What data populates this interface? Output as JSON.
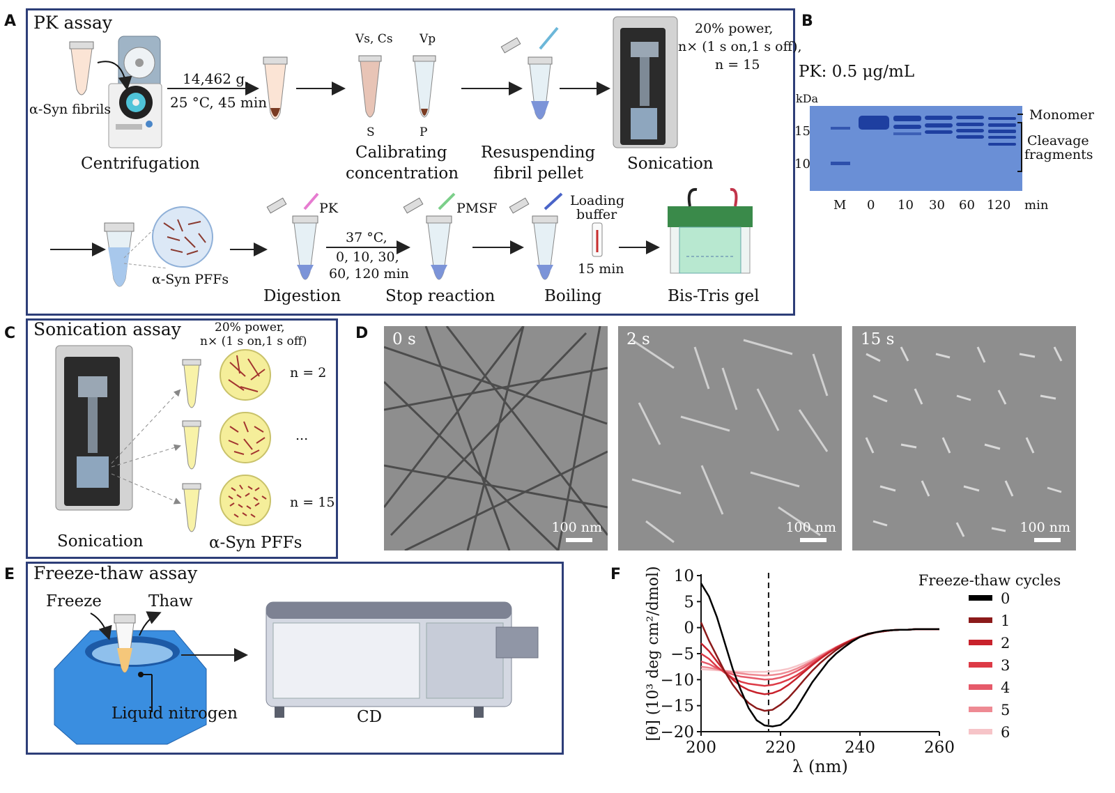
{
  "panels": {
    "A": {
      "letter": "A",
      "title": "PK assay",
      "fibrils_label": "α-Syn fibrils",
      "centrifugation": "Centrifugation",
      "spin_speed": "14,462 g,",
      "spin_cond": "25 °C, 45 min",
      "vs_cs": "Vs, Cs",
      "vp": "Vp",
      "s": "S",
      "p": "P",
      "calibrating_1": "Calibrating",
      "calibrating_2": "concentration",
      "resuspending_1": "Resuspending",
      "resuspending_2": "fibril pellet",
      "sonication": "Sonication",
      "son_cond_1": "20% power,",
      "son_cond_2": "n× (1 s on,1 s off),",
      "son_cond_3": "n = 15",
      "pffs": "α-Syn PFFs",
      "pk": "PK",
      "digestion": "Digestion",
      "dig_cond_1": "37 °C,",
      "dig_cond_2": "0, 10, 30,",
      "dig_cond_3": "60, 120 min",
      "pmsf": "PMSF",
      "stop": "Stop reaction",
      "loading_1": "Loading",
      "loading_2": "buffer",
      "boil_time": "15 min",
      "boiling": "Boiling",
      "gel": "Bis-Tris gel"
    },
    "B": {
      "letter": "B",
      "title": "PK: 0.5 μg/mL",
      "kda": "kDa",
      "marker_15": "15",
      "marker_10": "10",
      "monomer": "Monomer",
      "cleavage_1": "Cleavage",
      "cleavage_2": "fragments",
      "lanes": [
        "M",
        "0",
        "10",
        "30",
        "60",
        "120"
      ],
      "lane_unit": "min"
    },
    "C": {
      "letter": "C",
      "title": "Sonication assay",
      "cond_1": "20% power,",
      "cond_2": "n× (1 s on,1 s off)",
      "n2": "n = 2",
      "dots": "...",
      "n15": "n = 15",
      "sonication": "Sonication",
      "pffs": "α-Syn PFFs"
    },
    "D": {
      "letter": "D",
      "images": [
        {
          "label": "0 s",
          "scale": "100 nm"
        },
        {
          "label": "2 s",
          "scale": "100 nm"
        },
        {
          "label": "15 s",
          "scale": "100 nm"
        }
      ]
    },
    "E": {
      "letter": "E",
      "title": "Freeze-thaw assay",
      "freeze": "Freeze",
      "thaw": "Thaw",
      "ln2": "Liquid nitrogen",
      "cd": "CD"
    },
    "F": {
      "letter": "F"
    }
  },
  "colors": {
    "frame": "#2d3e78",
    "gel": "#6a8fd6",
    "pff_circle": "#f5ee9a",
    "fibril": "#a2342f"
  },
  "chart_data": {
    "type": "line",
    "xlabel": "λ (nm)",
    "ylabel": "[θ] (10³ deg cm²/dmol)",
    "xlim": [
      200,
      260
    ],
    "ylim": [
      -20,
      10
    ],
    "xticks": [
      "200",
      "220",
      "240",
      "260"
    ],
    "yticks": [
      "10",
      "5",
      "0",
      "−5",
      "−10",
      "−15",
      "−20"
    ],
    "vline_x": 217,
    "legend_title": "Freeze-thaw cycles",
    "legend_position": "right",
    "x": [
      200,
      202,
      204,
      206,
      208,
      210,
      212,
      214,
      216,
      218,
      220,
      222,
      224,
      226,
      228,
      230,
      232,
      234,
      236,
      238,
      240,
      242,
      244,
      246,
      248,
      250,
      252,
      254,
      256,
      258,
      260
    ],
    "series": [
      {
        "name": "0",
        "color": "#000000",
        "values": [
          8.5,
          6,
          2,
          -3,
          -8,
          -12,
          -15.5,
          -17.8,
          -18.8,
          -19,
          -18.7,
          -17.5,
          -15.5,
          -13,
          -10.5,
          -8.5,
          -6.5,
          -5,
          -3.8,
          -2.7,
          -1.8,
          -1.2,
          -0.9,
          -0.6,
          -0.5,
          -0.4,
          -0.4,
          -0.3,
          -0.3,
          -0.3,
          -0.3
        ]
      },
      {
        "name": "1",
        "color": "#8b1a1a",
        "values": [
          1,
          -2.5,
          -5.5,
          -8.5,
          -11,
          -13,
          -14.5,
          -15.5,
          -16,
          -15.8,
          -14.8,
          -13.5,
          -11.8,
          -10,
          -8.3,
          -6.8,
          -5.5,
          -4.3,
          -3.3,
          -2.5,
          -1.8,
          -1.3,
          -0.9,
          -0.7,
          -0.5,
          -0.4,
          -0.4,
          -0.3,
          -0.3,
          -0.3,
          -0.3
        ]
      },
      {
        "name": "2",
        "color": "#c8222c",
        "values": [
          -3,
          -4.5,
          -6.5,
          -8.5,
          -10,
          -11.2,
          -12,
          -12.5,
          -12.8,
          -12.6,
          -12,
          -11,
          -9.8,
          -8.5,
          -7.2,
          -6,
          -4.9,
          -3.9,
          -3.1,
          -2.4,
          -1.8,
          -1.3,
          -0.9,
          -0.7,
          -0.5,
          -0.4,
          -0.4,
          -0.3,
          -0.3,
          -0.3,
          -0.3
        ]
      },
      {
        "name": "3",
        "color": "#dd3a46",
        "values": [
          -5,
          -6,
          -7.5,
          -8.7,
          -9.7,
          -10.4,
          -10.8,
          -11,
          -11.2,
          -11,
          -10.6,
          -10,
          -9.2,
          -8.2,
          -7,
          -5.9,
          -4.8,
          -3.9,
          -3.1,
          -2.4,
          -1.8,
          -1.3,
          -0.9,
          -0.7,
          -0.5,
          -0.4,
          -0.4,
          -0.3,
          -0.3,
          -0.3,
          -0.3
        ]
      },
      {
        "name": "4",
        "color": "#e65a6a",
        "values": [
          -6.5,
          -7,
          -7.8,
          -8.5,
          -9,
          -9.4,
          -9.6,
          -9.8,
          -10,
          -9.9,
          -9.6,
          -9.1,
          -8.4,
          -7.6,
          -6.6,
          -5.6,
          -4.7,
          -3.8,
          -3,
          -2.3,
          -1.7,
          -1.2,
          -0.9,
          -0.7,
          -0.5,
          -0.4,
          -0.4,
          -0.3,
          -0.3,
          -0.3,
          -0.3
        ]
      },
      {
        "name": "5",
        "color": "#ee8a93",
        "values": [
          -7.5,
          -7.7,
          -8,
          -8.3,
          -8.6,
          -8.8,
          -9,
          -9.1,
          -9.2,
          -9.1,
          -8.9,
          -8.5,
          -7.9,
          -7.2,
          -6.4,
          -5.5,
          -4.6,
          -3.8,
          -3,
          -2.3,
          -1.7,
          -1.2,
          -0.9,
          -0.7,
          -0.5,
          -0.4,
          -0.4,
          -0.3,
          -0.3,
          -0.3,
          -0.3
        ]
      },
      {
        "name": "6",
        "color": "#f6c4c8",
        "values": [
          -8,
          -8.1,
          -8.2,
          -8.3,
          -8.4,
          -8.5,
          -8.5,
          -8.5,
          -8.5,
          -8.4,
          -8.2,
          -7.9,
          -7.4,
          -6.8,
          -6.1,
          -5.3,
          -4.5,
          -3.7,
          -3,
          -2.3,
          -1.7,
          -1.2,
          -0.9,
          -0.7,
          -0.5,
          -0.4,
          -0.4,
          -0.3,
          -0.3,
          -0.3,
          -0.3
        ]
      }
    ]
  }
}
